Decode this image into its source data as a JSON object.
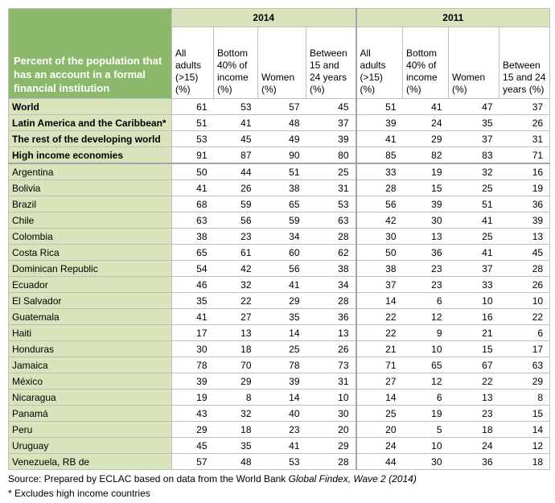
{
  "header": {
    "row_title": "Percent of the population that has an account in a formal financial institution",
    "groups": [
      {
        "title": "2014",
        "columns": [
          "All adults (>15) (%)",
          "Bottom 40% of income (%)",
          "Women (%)",
          "Between 15 and 24 years (%)"
        ]
      },
      {
        "title": "2011",
        "columns": [
          "All adults (>15) (%)",
          "Bottom 40% of income (%)",
          "Women (%)",
          "Between 15 and 24 years (%)"
        ]
      }
    ]
  },
  "table": {
    "aggregate_rows": [
      {
        "name": "World",
        "values": [
          61,
          53,
          57,
          45,
          51,
          41,
          47,
          37
        ]
      },
      {
        "name": "Latin America and the Caribbean*",
        "values": [
          51,
          41,
          48,
          37,
          39,
          24,
          35,
          26
        ]
      },
      {
        "name": "The rest of the developing world",
        "values": [
          53,
          45,
          49,
          39,
          41,
          29,
          37,
          31
        ]
      },
      {
        "name": "High income economies",
        "values": [
          91,
          87,
          90,
          80,
          85,
          82,
          83,
          71
        ]
      }
    ],
    "country_rows": [
      {
        "name": "Argentina",
        "values": [
          50,
          44,
          51,
          25,
          33,
          19,
          32,
          16
        ]
      },
      {
        "name": "Bolivia",
        "values": [
          41,
          26,
          38,
          31,
          28,
          15,
          25,
          19
        ]
      },
      {
        "name": "Brazil",
        "values": [
          68,
          59,
          65,
          53,
          56,
          39,
          51,
          36
        ]
      },
      {
        "name": "Chile",
        "values": [
          63,
          56,
          59,
          63,
          42,
          30,
          41,
          39
        ]
      },
      {
        "name": "Colombia",
        "values": [
          38,
          23,
          34,
          28,
          30,
          13,
          25,
          13
        ]
      },
      {
        "name": "Costa Rica",
        "values": [
          65,
          61,
          60,
          62,
          50,
          36,
          41,
          45
        ]
      },
      {
        "name": "Dominican Republic",
        "values": [
          54,
          42,
          56,
          38,
          38,
          23,
          37,
          28
        ]
      },
      {
        "name": "Ecuador",
        "values": [
          46,
          32,
          41,
          34,
          37,
          23,
          33,
          26
        ]
      },
      {
        "name": "El Salvador",
        "values": [
          35,
          22,
          29,
          28,
          14,
          6,
          10,
          10
        ]
      },
      {
        "name": "Guatemala",
        "values": [
          41,
          27,
          35,
          36,
          22,
          12,
          16,
          22
        ]
      },
      {
        "name": "Haiti",
        "values": [
          17,
          13,
          14,
          13,
          22,
          9,
          21,
          6
        ]
      },
      {
        "name": "Honduras",
        "values": [
          30,
          18,
          25,
          26,
          21,
          10,
          15,
          17
        ]
      },
      {
        "name": "Jamaica",
        "values": [
          78,
          70,
          78,
          73,
          71,
          65,
          67,
          63
        ]
      },
      {
        "name": "México",
        "values": [
          39,
          29,
          39,
          31,
          27,
          12,
          22,
          29
        ]
      },
      {
        "name": "Nicaragua",
        "values": [
          19,
          8,
          14,
          10,
          14,
          6,
          13,
          8
        ]
      },
      {
        "name": "Panamá",
        "values": [
          43,
          32,
          40,
          30,
          25,
          19,
          23,
          15
        ]
      },
      {
        "name": "Peru",
        "values": [
          29,
          18,
          23,
          20,
          20,
          5,
          18,
          14
        ]
      },
      {
        "name": "Uruguay",
        "values": [
          45,
          35,
          41,
          29,
          24,
          10,
          24,
          12
        ]
      },
      {
        "name": "Venezuela, RB de",
        "values": [
          57,
          48,
          53,
          28,
          44,
          30,
          36,
          18
        ]
      }
    ]
  },
  "footnotes": {
    "source_prefix": "Source: Prepared by ECLAC based on data from the World Bank",
    "source_italic": "Global Findex, Wave 2 (2014)",
    "note": "* Excludes high income countries"
  }
}
